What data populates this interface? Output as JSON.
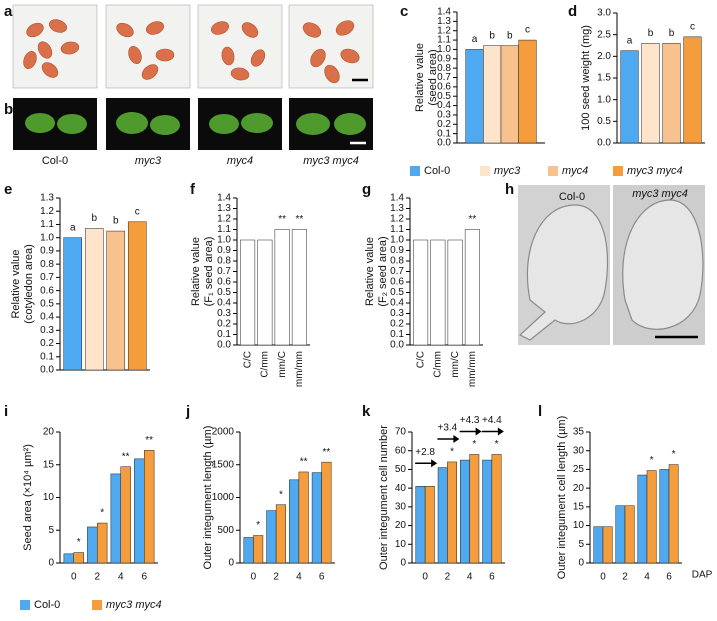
{
  "panel_labels": [
    "a",
    "b",
    "c",
    "d",
    "e",
    "f",
    "g",
    "h",
    "i",
    "j",
    "k",
    "l"
  ],
  "images": {
    "genotypes": [
      "Col-0",
      "myc3",
      "myc4",
      "myc3 myc4"
    ],
    "h_labels": [
      "Col-0",
      "myc3 myc4"
    ]
  },
  "chart_data": [
    {
      "type": "bar",
      "y_label": [
        "Relative value",
        "(seed area)"
      ],
      "categories": [
        null
      ],
      "legend": true,
      "series": [
        {
          "name": "Col-0",
          "color": "#4fa9f0",
          "values": [
            1.0
          ],
          "annotations": [
            "a"
          ]
        },
        {
          "name": "myc3",
          "color": "#fde4cb",
          "values": [
            1.04
          ],
          "annotations": [
            "b"
          ]
        },
        {
          "name": "myc4",
          "color": "#f8c28e",
          "values": [
            1.04
          ],
          "annotations": [
            "b"
          ]
        },
        {
          "name": "myc3 myc4",
          "color": "#f59c3c",
          "values": [
            1.1
          ],
          "annotations": [
            "c"
          ]
        }
      ],
      "ylim": [
        0,
        1.4
      ],
      "yticks": [
        {
          "value": 0,
          "label": "0.0"
        },
        0.1,
        0.2,
        0.3,
        0.4,
        0.5,
        0.6,
        0.7,
        0.8,
        0.9,
        {
          "value": 1,
          "label": "1.0"
        },
        1.1,
        1.2,
        1.3,
        1.4
      ]
    },
    {
      "type": "bar",
      "y_label": "100 seed weight (mg)",
      "categories": [
        null,
        null,
        null,
        null
      ],
      "values": [
        2.13,
        2.3,
        2.3,
        2.45
      ],
      "colors": [
        "#4fa9f0",
        "#fde4cb",
        "#f8c28e",
        "#f59c3c"
      ],
      "annotations": [
        "a",
        "b",
        "b",
        "c"
      ],
      "ylim": [
        0,
        3
      ],
      "yticks": [
        {
          "value": 0,
          "label": "0.0"
        },
        0.5,
        {
          "value": 1,
          "label": "1.0"
        },
        1.5,
        {
          "value": 2,
          "label": "2.0"
        },
        2.5,
        {
          "value": 3,
          "label": "3.0"
        }
      ]
    },
    {
      "type": "bar",
      "y_label": [
        "Relative value",
        "(cotyledon area)"
      ],
      "categories": [
        null,
        null,
        null,
        null
      ],
      "values": [
        1.0,
        1.07,
        1.05,
        1.12
      ],
      "colors": [
        "#4fa9f0",
        "#fde4cb",
        "#f8c28e",
        "#f59c3c"
      ],
      "annotations": [
        "a",
        "b",
        "b",
        "c"
      ],
      "ylim": [
        0,
        1.3
      ],
      "yticks": [
        {
          "value": 0,
          "label": "0.0"
        },
        0.1,
        0.2,
        0.3,
        0.4,
        0.5,
        0.6,
        0.7,
        0.8,
        0.9,
        {
          "value": 1,
          "label": "1.0"
        },
        1.1,
        1.2,
        1.3
      ]
    },
    {
      "type": "bar",
      "y_label": [
        "Relative value",
        "(F₁ seed area)"
      ],
      "categories": [
        "C/C",
        "C/mm",
        "mm/C",
        "mm/mm"
      ],
      "values": [
        1.0,
        1.0,
        1.1,
        1.1
      ],
      "colors": [
        "#ffffff",
        "#ffffff",
        "#ffffff",
        "#ffffff"
      ],
      "annotations": [
        null,
        null,
        "**",
        "**"
      ],
      "ylim": [
        0,
        1.4
      ],
      "yticks": [
        {
          "value": 0,
          "label": "0.0"
        },
        0.1,
        0.2,
        0.3,
        0.4,
        0.5,
        0.6,
        0.7,
        0.8,
        0.9,
        {
          "value": 1,
          "label": "1.0"
        },
        1.1,
        1.2,
        1.3,
        1.4
      ]
    },
    {
      "type": "bar",
      "y_label": [
        "Relative value",
        "(F₂ seed area)"
      ],
      "categories": [
        "C/C",
        "C/mm",
        "mm/C",
        "mm/mm"
      ],
      "values": [
        1.0,
        1.0,
        1.0,
        1.1
      ],
      "colors": [
        "#ffffff",
        "#ffffff",
        "#ffffff",
        "#ffffff"
      ],
      "annotations": [
        null,
        null,
        null,
        "**"
      ],
      "ylim": [
        0,
        1.4
      ],
      "yticks": [
        {
          "value": 0,
          "label": "0.0"
        },
        0.1,
        0.2,
        0.3,
        0.4,
        0.5,
        0.6,
        0.7,
        0.8,
        0.9,
        {
          "value": 1,
          "label": "1.0"
        },
        1.1,
        1.2,
        1.3,
        1.4
      ]
    },
    {
      "type": "bar",
      "y_label": "Seed area (×10⁴ µm²)",
      "categories": [
        "0",
        "2",
        "4",
        "6"
      ],
      "legend": true,
      "series": [
        {
          "name": "Col-0",
          "color": "#4fa9f0",
          "values": [
            1.4,
            5.5,
            13.6,
            15.9
          ]
        },
        {
          "name": "myc3 myc4",
          "color": "#f59c3c",
          "values": [
            1.6,
            6.1,
            14.7,
            17.2
          ],
          "annotations": [
            "*",
            "*",
            "**",
            "**"
          ]
        }
      ],
      "ylim": [
        0,
        20
      ],
      "yticks": [
        0,
        5,
        10,
        15,
        20
      ]
    },
    {
      "type": "bar",
      "y_label": "Outer integument length (µm)",
      "categories": [
        "0",
        "2",
        "4",
        "6"
      ],
      "series": [
        {
          "color": "#4fa9f0",
          "values": [
            390,
            800,
            1270,
            1380
          ]
        },
        {
          "color": "#f59c3c",
          "values": [
            420,
            890,
            1390,
            1540
          ],
          "annotations": [
            "*",
            "*",
            "**",
            "**"
          ]
        }
      ],
      "ylim": [
        0,
        2000
      ],
      "yticks": [
        0,
        500,
        1000,
        1500,
        2000
      ]
    },
    {
      "type": "bar",
      "y_label": "Outer integument cell number",
      "categories": [
        "0",
        "2",
        "4",
        "6"
      ],
      "deltas": [
        "+2.8",
        "+3.4",
        "+4.3",
        "+4.4"
      ],
      "series": [
        {
          "color": "#4fa9f0",
          "values": [
            41,
            51,
            55,
            55
          ]
        },
        {
          "color": "#f59c3c",
          "values": [
            41,
            54,
            58,
            58
          ],
          "annotations": [
            null,
            "*",
            "*",
            "*"
          ]
        }
      ],
      "ylim": [
        0,
        70
      ],
      "yticks": [
        0,
        10,
        20,
        30,
        40,
        50,
        60,
        70
      ]
    },
    {
      "type": "bar",
      "y_label": "Outer integument cell length (µm)",
      "x_label": "DAP",
      "categories": [
        "0",
        "2",
        "4",
        "6"
      ],
      "series": [
        {
          "color": "#4fa9f0",
          "values": [
            9.7,
            15.3,
            23.5,
            25
          ]
        },
        {
          "color": "#f59c3c",
          "values": [
            9.7,
            15.3,
            24.7,
            26.3
          ],
          "annotations": [
            null,
            null,
            "*",
            "*"
          ]
        }
      ],
      "ylim": [
        0,
        35
      ],
      "yticks": [
        0,
        5,
        10,
        15,
        20,
        25,
        30,
        35
      ]
    }
  ]
}
